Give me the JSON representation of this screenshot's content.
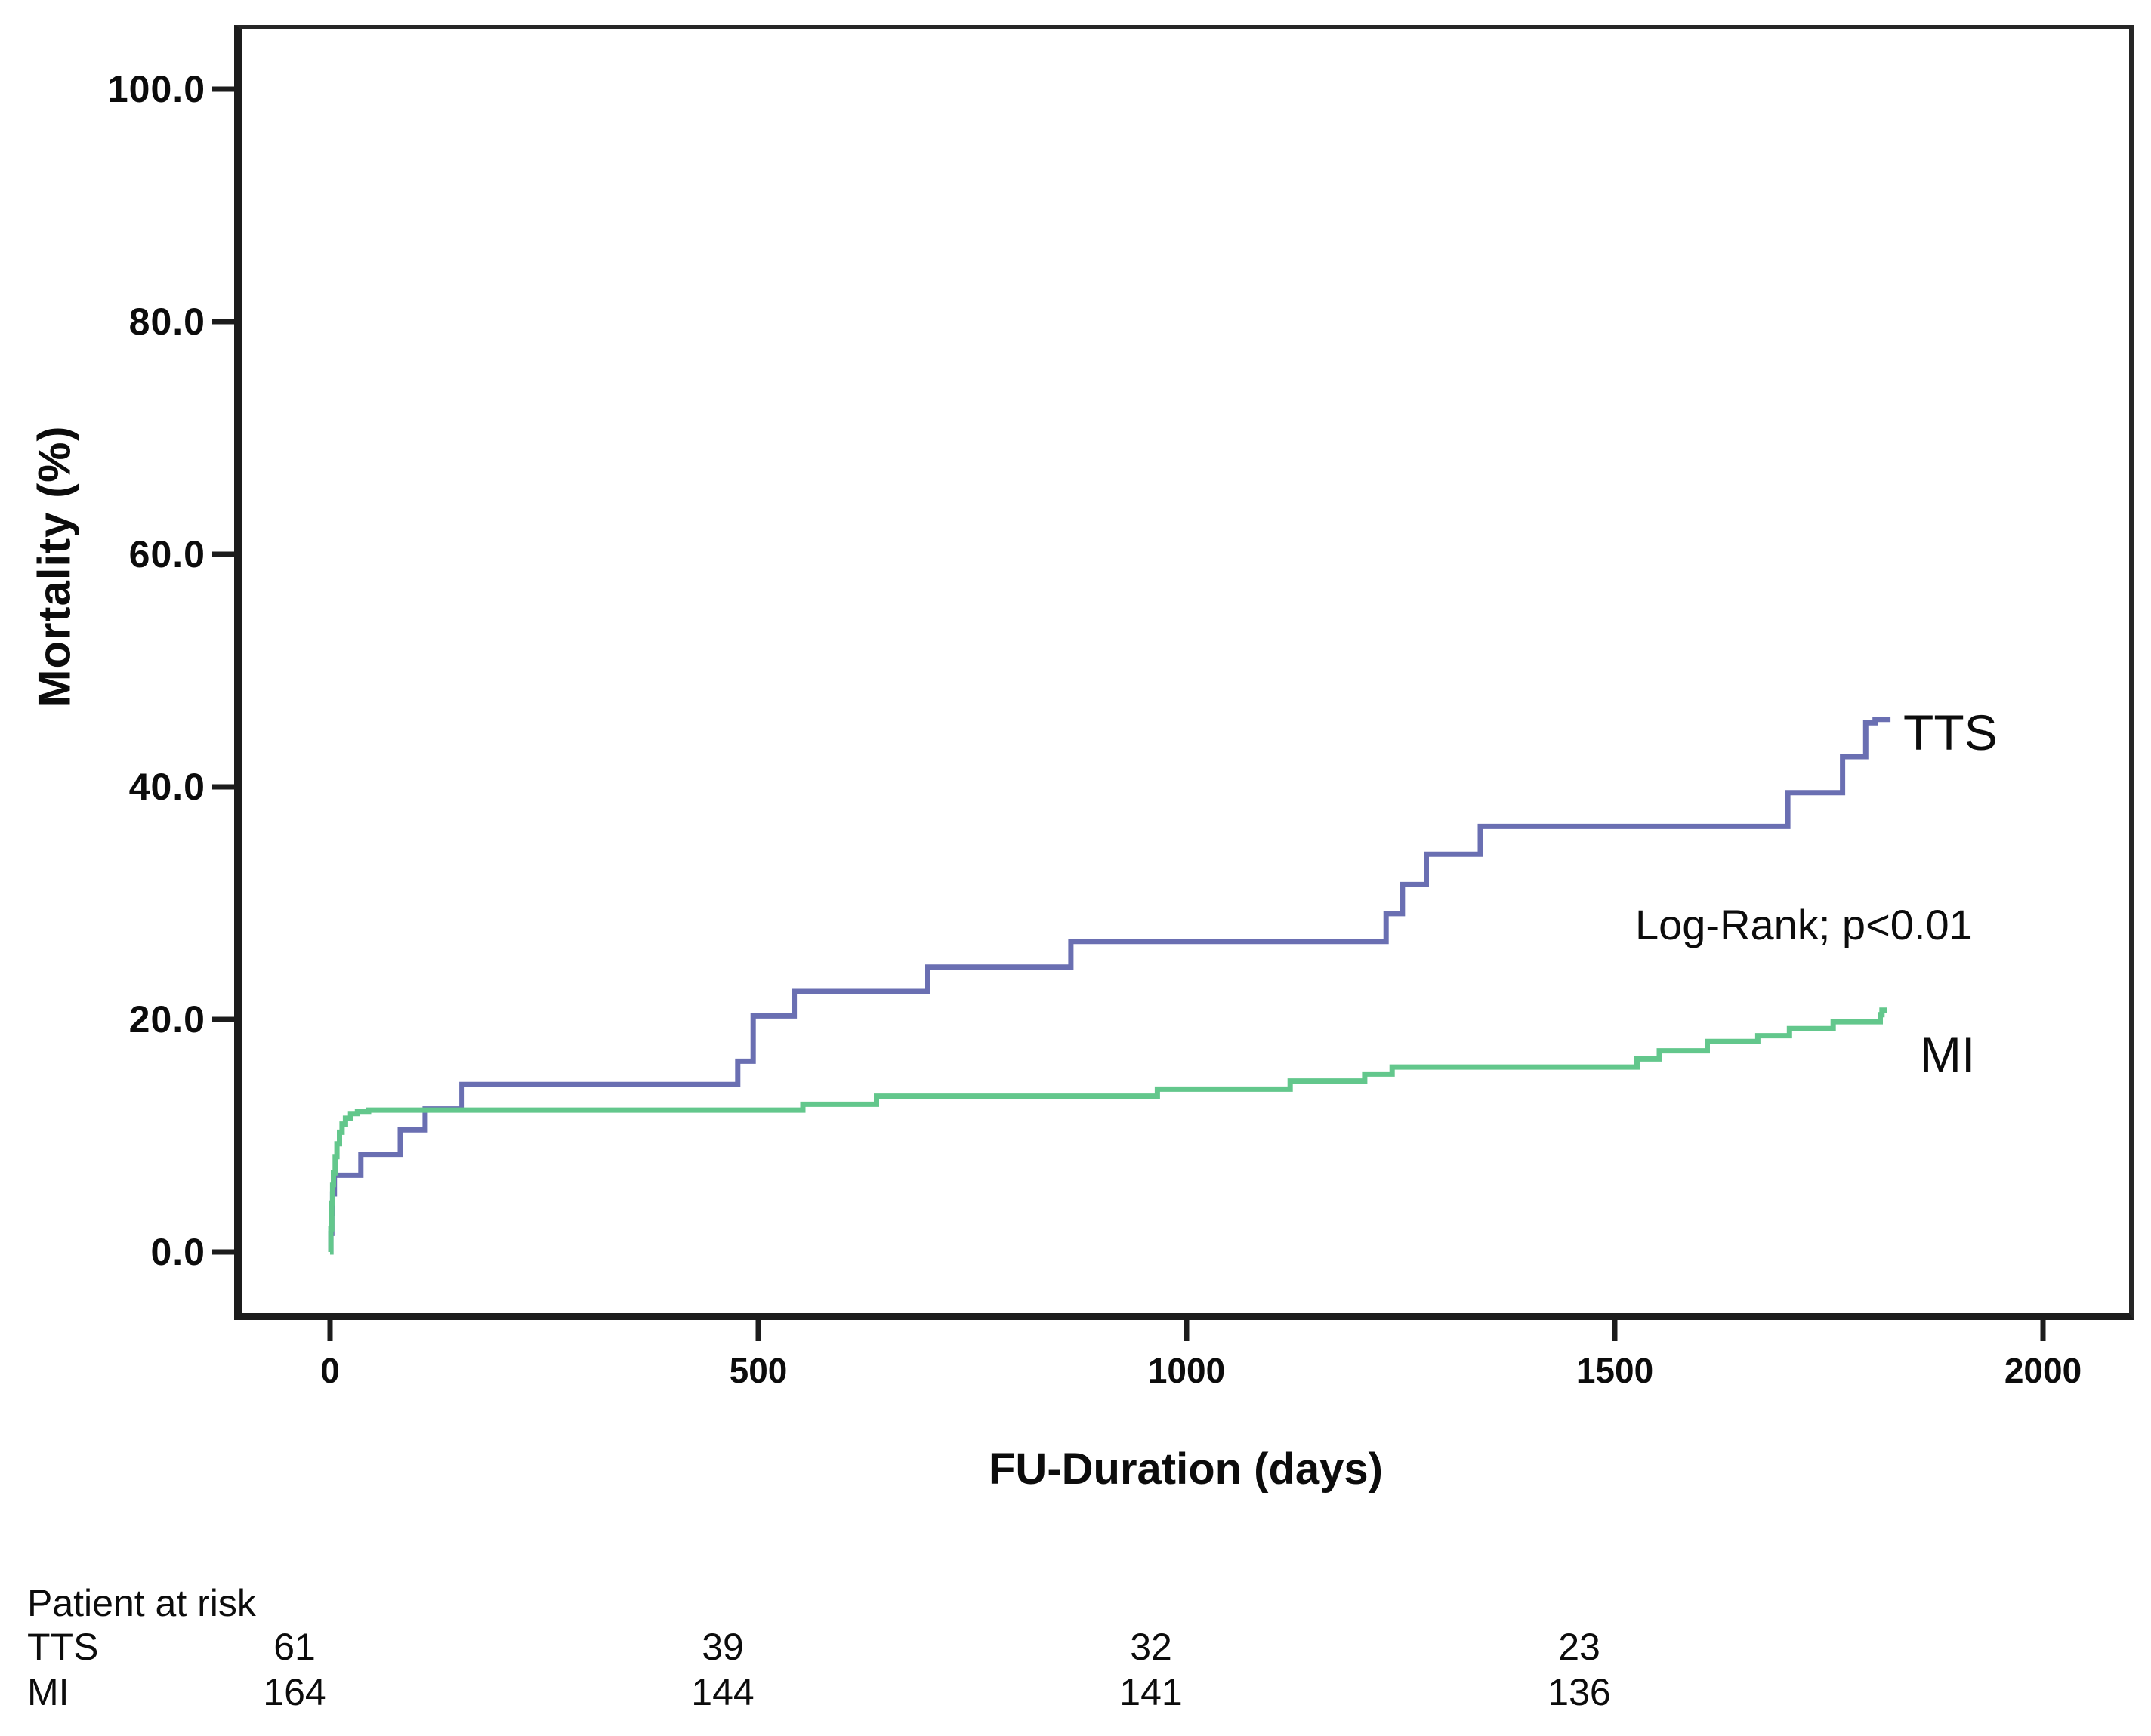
{
  "chart_data": {
    "type": "line",
    "subtype": "kaplan-meier-step",
    "title": "",
    "xlabel": "FU-Duration (days)",
    "ylabel": "Mortality (%)",
    "xlim": [
      -112,
      2099
    ],
    "ylim": [
      -5.5,
      105.5
    ],
    "grid": false,
    "annotation": "Log-Rank; p<0.01",
    "x_ticks": [
      {
        "v": 0,
        "label": "0"
      },
      {
        "v": 500,
        "label": "500"
      },
      {
        "v": 1000,
        "label": "1000"
      },
      {
        "v": 1500,
        "label": "1500"
      },
      {
        "v": 2000,
        "label": "2000"
      }
    ],
    "y_ticks": [
      {
        "v": 100,
        "label": "100.0"
      },
      {
        "v": 80,
        "label": "80.0"
      },
      {
        "v": 60,
        "label": "60.0"
      },
      {
        "v": 40,
        "label": "40.0"
      },
      {
        "v": 20,
        "label": "20.0"
      },
      {
        "v": 0,
        "label": "0.0"
      }
    ],
    "series": [
      {
        "name": "TTS",
        "color": "#6a6fb2",
        "step": "after",
        "points": [
          [
            0,
            0
          ],
          [
            1,
            1.6
          ],
          [
            2,
            3.3
          ],
          [
            3,
            5.0
          ],
          [
            5,
            6.6
          ],
          [
            36,
            8.4
          ],
          [
            82,
            10.5
          ],
          [
            111,
            12.3
          ],
          [
            154,
            14.4
          ],
          [
            476,
            16.4
          ],
          [
            494,
            20.3
          ],
          [
            542,
            22.4
          ],
          [
            698,
            24.5
          ],
          [
            865,
            26.7
          ],
          [
            1233,
            29.1
          ],
          [
            1252,
            31.6
          ],
          [
            1280,
            34.2
          ],
          [
            1343,
            36.6
          ],
          [
            1702,
            39.5
          ],
          [
            1766,
            42.6
          ],
          [
            1793,
            45.5
          ],
          [
            1804,
            45.8
          ],
          [
            1822,
            45.8
          ]
        ]
      },
      {
        "name": "MI",
        "color": "#63c78c",
        "step": "after",
        "points": [
          [
            0,
            0
          ],
          [
            1,
            2.0
          ],
          [
            2,
            4.2
          ],
          [
            3,
            5.8
          ],
          [
            4,
            6.8
          ],
          [
            6,
            8.2
          ],
          [
            8,
            9.3
          ],
          [
            11,
            10.3
          ],
          [
            14,
            11.0
          ],
          [
            18,
            11.5
          ],
          [
            24,
            11.9
          ],
          [
            32,
            12.1
          ],
          [
            45,
            12.2
          ],
          [
            552,
            12.7
          ],
          [
            638,
            13.4
          ],
          [
            966,
            14.0
          ],
          [
            1121,
            14.7
          ],
          [
            1208,
            15.3
          ],
          [
            1240,
            15.9
          ],
          [
            1526,
            16.6
          ],
          [
            1552,
            17.3
          ],
          [
            1608,
            18.1
          ],
          [
            1667,
            18.6
          ],
          [
            1704,
            19.2
          ],
          [
            1755,
            19.8
          ],
          [
            1810,
            20.4
          ],
          [
            1812,
            20.8
          ],
          [
            1818,
            20.8
          ]
        ]
      }
    ],
    "curve_end_labels": {
      "tts": "TTS",
      "mi": "MI"
    },
    "at_risk": {
      "header": "Patient at risk",
      "times": [
        0,
        500,
        1000,
        1500
      ],
      "rows": [
        {
          "label": "TTS",
          "values": [
            "61",
            "39",
            "32",
            "23"
          ]
        },
        {
          "label": "MI",
          "values": [
            "164",
            "144",
            "141",
            "136"
          ]
        }
      ]
    }
  }
}
